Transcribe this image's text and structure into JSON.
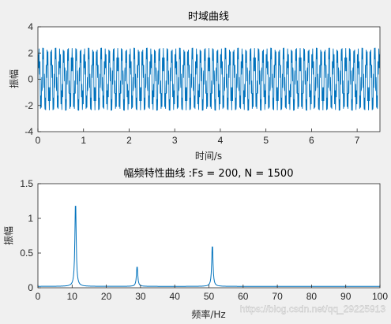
{
  "watermark": "https://blog.csdn.net/qq_29225913",
  "colors": {
    "figure_bg": "#f0f0f0",
    "axes_bg": "#ffffff",
    "line": "#0072bd",
    "axis": "#262626"
  },
  "chart_data": [
    {
      "type": "line",
      "title": "时域曲线",
      "xlabel": "时间/s",
      "ylabel": "振幅",
      "xlim": [
        0,
        7.5
      ],
      "ylim": [
        -4,
        4
      ],
      "xticks": [
        0,
        1,
        2,
        3,
        4,
        5,
        6,
        7
      ],
      "yticks": [
        -4,
        -2,
        0,
        2,
        4
      ],
      "sample_rate_hz": 200,
      "samples": 1500,
      "components": [
        {
          "freq_hz": 11,
          "amplitude": 1.3
        },
        {
          "freq_hz": 29,
          "amplitude": 0.3
        },
        {
          "freq_hz": 51,
          "amplitude": 0.65
        }
      ],
      "y_range_observed": [
        -2.4,
        2.4
      ]
    },
    {
      "type": "line",
      "title": "幅频特性曲线 :Fs = 200, N = 1500",
      "xlabel": "频率/Hz",
      "ylabel": "振幅",
      "xlim": [
        0,
        100
      ],
      "ylim": [
        0,
        1.5
      ],
      "xticks": [
        0,
        10,
        20,
        30,
        40,
        50,
        60,
        70,
        80,
        90,
        100
      ],
      "yticks": [
        0,
        0.5,
        1,
        1.5
      ],
      "peaks": [
        {
          "freq_hz": 11,
          "amplitude": 1.28
        },
        {
          "freq_hz": 29,
          "amplitude": 0.32
        },
        {
          "freq_hz": 51,
          "amplitude": 0.64
        }
      ],
      "baseline": 0.02
    }
  ]
}
